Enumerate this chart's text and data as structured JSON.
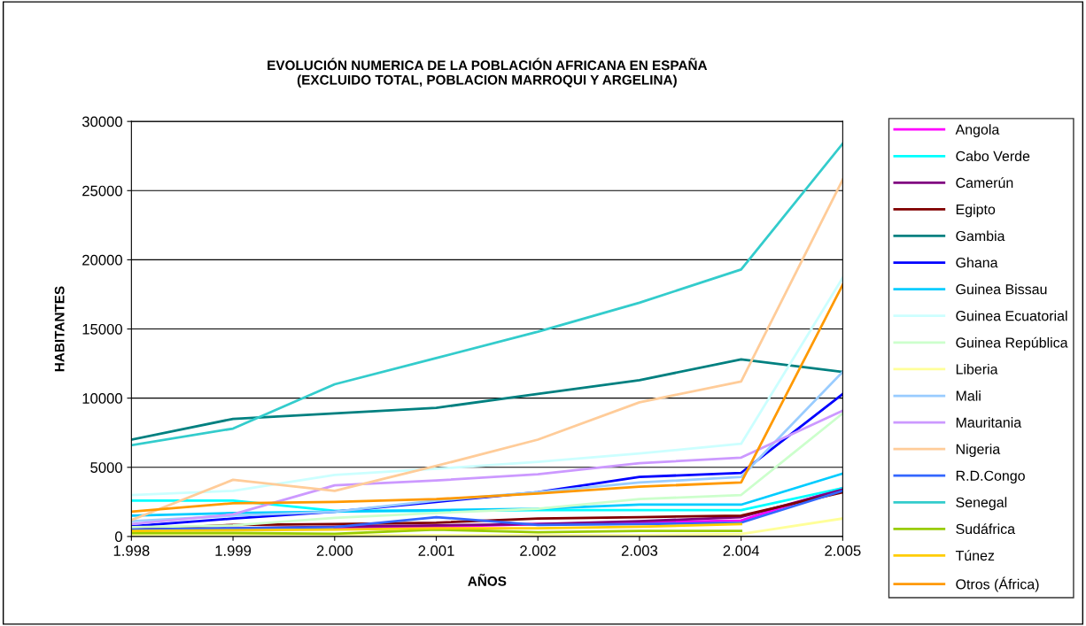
{
  "chart_data": {
    "type": "line",
    "title": "EVOLUCIÓN NUMERICA DE LA POBLACIÓN AFRICANA EN ESPAÑA\n(EXCLUIDO TOTAL, POBLACION MARROQUI Y ARGELINA)",
    "xlabel": "AÑOS",
    "ylabel": "HABITANTES",
    "categories": [
      "1.998",
      "1.999",
      "2.000",
      "2.001",
      "2.002",
      "2.003",
      "2.004",
      "2.005"
    ],
    "ylim": [
      0,
      30000
    ],
    "yticks": [
      0,
      5000,
      10000,
      15000,
      20000,
      25000,
      30000
    ],
    "grid": "y",
    "legend": "right",
    "marker": "none",
    "line_style": "solid",
    "series": [
      {
        "name": "Angola",
        "color": "#ff00ff",
        "values": [
          null,
          null,
          600,
          700,
          900,
          1000,
          1150,
          3500
        ]
      },
      {
        "name": "Cabo Verde",
        "color": "#00ffff",
        "values": [
          2600,
          2600,
          1850,
          1850,
          1900,
          1900,
          1900,
          3500
        ]
      },
      {
        "name": "Camerún",
        "color": "#800080",
        "values": [
          400,
          600,
          700,
          800,
          900,
          1100,
          1400,
          3400
        ]
      },
      {
        "name": "Egipto",
        "color": "#800000",
        "values": [
          500,
          840,
          900,
          1000,
          1300,
          1400,
          1500,
          3200
        ]
      },
      {
        "name": "Gambia",
        "color": "#008080",
        "values": [
          7000,
          8500,
          8900,
          9300,
          10300,
          11300,
          12800,
          11900
        ]
      },
      {
        "name": "Ghana",
        "color": "#0000ff",
        "values": [
          740,
          1300,
          1800,
          2500,
          3200,
          4300,
          4600,
          10300
        ]
      },
      {
        "name": "Guinea Bissau",
        "color": "#00ccff",
        "values": [
          1500,
          1700,
          1800,
          1900,
          2000,
          2300,
          2300,
          4550
        ]
      },
      {
        "name": "Guinea Ecuatorial",
        "color": "#ccffff",
        "values": [
          3000,
          3300,
          4450,
          4900,
          5400,
          6000,
          6700,
          18700
        ]
      },
      {
        "name": "Guinea República",
        "color": "#ccffcc",
        "values": [
          670,
          800,
          1350,
          1700,
          2000,
          2700,
          3000,
          8900
        ]
      },
      {
        "name": "Liberia",
        "color": "#ffff99",
        "values": [
          100,
          100,
          100,
          100,
          100,
          100,
          170,
          1300
        ]
      },
      {
        "name": "Mali",
        "color": "#99ccff",
        "values": [
          1100,
          1500,
          1800,
          2600,
          3200,
          3900,
          4300,
          11900
        ]
      },
      {
        "name": "Mauritania",
        "color": "#cc99ff",
        "values": [
          900,
          1600,
          3700,
          4050,
          4500,
          5300,
          5700,
          9100
        ]
      },
      {
        "name": "Nigeria",
        "color": "#ffcc99",
        "values": [
          1180,
          4100,
          3300,
          5100,
          7000,
          9700,
          11200,
          25800
        ]
      },
      {
        "name": "R.D.Congo",
        "color": "#3366ff",
        "values": [
          500,
          600,
          670,
          1400,
          840,
          900,
          1000,
          3300
        ]
      },
      {
        "name": "Senegal",
        "color": "#33cccc",
        "values": [
          6600,
          7800,
          11000,
          12900,
          14800,
          16900,
          19300,
          28400
        ]
      },
      {
        "name": "Sudáfrica",
        "color": "#99cc00",
        "values": [
          250,
          250,
          200,
          500,
          300,
          400,
          400,
          null
        ]
      },
      {
        "name": "Túnez",
        "color": "#ffcc00",
        "values": [
          400,
          450,
          500,
          600,
          600,
          700,
          900,
          null
        ]
      },
      {
        "name": "Otros (África)",
        "color": "#ff9900",
        "values": [
          1800,
          2400,
          2500,
          2700,
          3100,
          3600,
          3900,
          18200
        ]
      }
    ]
  }
}
